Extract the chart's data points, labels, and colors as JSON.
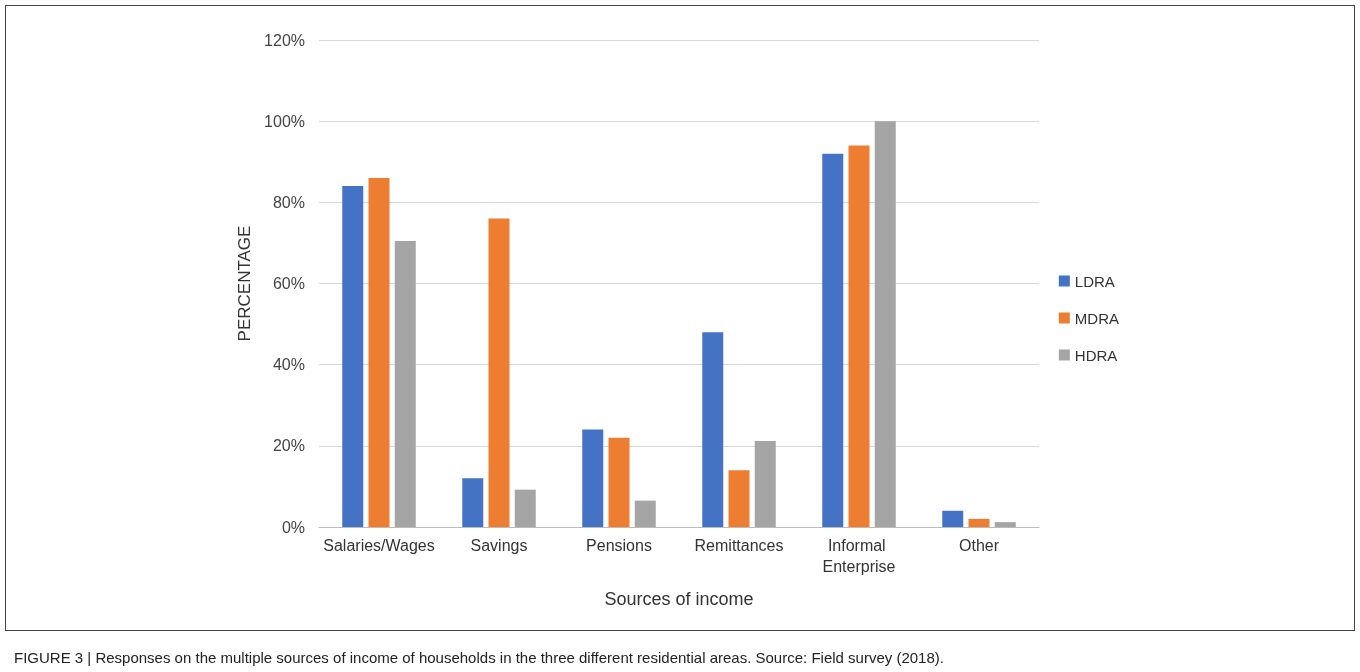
{
  "chart_data": {
    "type": "bar",
    "xlabel": "Sources of income",
    "ylabel": "PERCENTAGE",
    "categories": [
      "Salaries/Wages",
      "Savings",
      "Pensions",
      "Remittances",
      "Informal Enterprise",
      "Other"
    ],
    "series": [
      {
        "name": "LDRA",
        "color": "#4472c4",
        "values": [
          84,
          12,
          24,
          48,
          92,
          4
        ]
      },
      {
        "name": "MDRA",
        "color": "#ed7d31",
        "values": [
          86,
          76,
          22,
          14,
          94,
          2
        ]
      },
      {
        "name": "HDRA",
        "color": "#a5a5a5",
        "values": [
          70.5,
          9.2,
          6.5,
          21.2,
          100,
          1.2
        ]
      }
    ],
    "ylim": [
      0,
      120
    ],
    "yticks": [
      {
        "value": 0,
        "label": "0%"
      },
      {
        "value": 20,
        "label": "20%"
      },
      {
        "value": 40,
        "label": "40%"
      },
      {
        "value": 60,
        "label": "60%"
      },
      {
        "value": 80,
        "label": "80%"
      },
      {
        "value": 100,
        "label": "100%"
      },
      {
        "value": 120,
        "label": "120%"
      }
    ],
    "grid": true,
    "legend": "right",
    "annotations": [
      "FIGURE 3 | Responses on the multiple sources of income of households in the three different residential areas. Source: Field survey (2018)."
    ]
  }
}
